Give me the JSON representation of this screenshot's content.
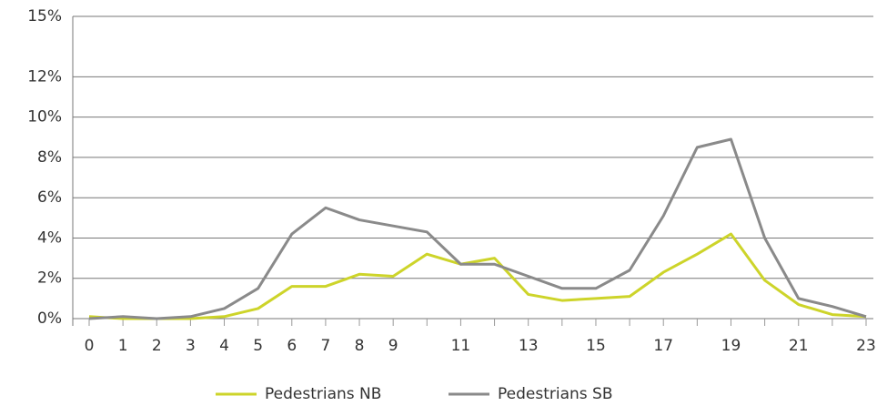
{
  "chart_data": {
    "type": "line",
    "categories": [
      "0",
      "1",
      "2",
      "3",
      "4",
      "5",
      "6",
      "7",
      "8",
      "9",
      null,
      "11",
      null,
      "13",
      null,
      "15",
      null,
      "17",
      null,
      "19",
      null,
      "21",
      null,
      "23"
    ],
    "series": [
      {
        "name": "Pedestrians NB",
        "color": "#cdd42a",
        "values": [
          0.1,
          0,
          0,
          0,
          0.1,
          0.5,
          1.6,
          1.6,
          2.2,
          2.1,
          3.2,
          2.7,
          3.0,
          1.2,
          0.9,
          1.0,
          1.1,
          2.3,
          3.2,
          4.2,
          1.9,
          0.7,
          0.2,
          0.1
        ]
      },
      {
        "name": "Pedestrians SB",
        "color": "#8a8a8a",
        "values": [
          0,
          0.1,
          0,
          0.1,
          0.5,
          1.5,
          4.2,
          5.5,
          4.9,
          4.6,
          4.3,
          2.7,
          2.7,
          2.1,
          1.5,
          1.5,
          2.4,
          5.1,
          8.5,
          8.9,
          4.0,
          1.0,
          0.6,
          0.1
        ]
      }
    ],
    "ylim": [
      0,
      15
    ],
    "yticks": [
      {
        "value": 0,
        "label": "0%"
      },
      {
        "value": 2,
        "label": "2%"
      },
      {
        "value": 4,
        "label": "4%"
      },
      {
        "value": 6,
        "label": "6%"
      },
      {
        "value": 8,
        "label": "8%"
      },
      {
        "value": 10,
        "label": "10%"
      },
      {
        "value": 12,
        "label": "12%"
      },
      {
        "value": 15,
        "label": "15%"
      }
    ],
    "grid": true,
    "legend": "bottom"
  }
}
